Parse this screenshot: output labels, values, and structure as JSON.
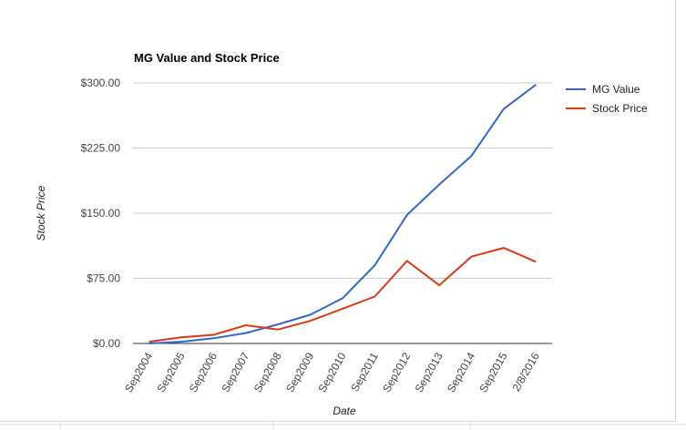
{
  "chart_data": {
    "type": "line",
    "title": "MG Value and Stock Price",
    "xlabel": "Date",
    "ylabel": "Stock Price",
    "categories": [
      "Sep2004",
      "Sep2005",
      "Sep2006",
      "Sep2007",
      "Sep2008",
      "Sep2009",
      "Sep2010",
      "Sep2011",
      "Sep2012",
      "Sep2013",
      "Sep2014",
      "Sep2015",
      "2/8/2016"
    ],
    "series": [
      {
        "name": "MG Value",
        "color": "#3366cc",
        "values": [
          0,
          2,
          6,
          12,
          22,
          33,
          52,
          90,
          148,
          183,
          216,
          270,
          298
        ]
      },
      {
        "name": "Stock Price",
        "color": "#dc3912",
        "values": [
          2,
          7,
          10,
          21,
          16,
          26,
          40,
          54,
          95,
          67,
          100,
          110,
          94
        ]
      }
    ],
    "ylim": [
      0,
      300
    ],
    "yticks": [
      0,
      75,
      150,
      225,
      300
    ],
    "ytick_labels": [
      "$0.00",
      "$75.00",
      "$150.00",
      "$225.00",
      "$300.00"
    ],
    "grid": true,
    "legend": "right"
  }
}
